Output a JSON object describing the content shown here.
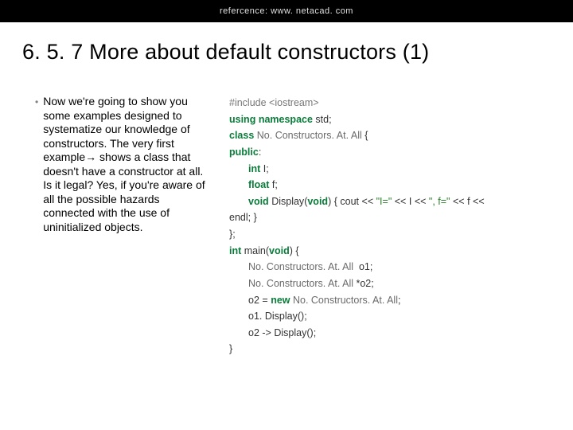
{
  "header": {
    "reference": "refercence: www. netacad. com"
  },
  "title": "6. 5. 7 More about default constructors (1)",
  "paragraph": "Now we're going to show you some examples designed to systematize our knowledge of constructors. The very first example→ shows a class that doesn't have a constructor at all. Is it legal? Yes, if you're aware of all the possible hazards connected with the use of uninitialized objects.",
  "code": {
    "colors": {
      "keyword": "#0a7c3a",
      "preprocessor": "#777777",
      "classname": "#6a6a6a",
      "text": "#333333",
      "string": "#2a7f2a",
      "background": "#ffffff",
      "header_bg": "#000000",
      "header_text": "#e0e0e0",
      "bullet": "#808080"
    },
    "font_size": 12.5,
    "line_height": 1.65,
    "tokens": {
      "include": "#include <iostream>",
      "using": "using",
      "namespace": "namespace",
      "std": "std",
      "class_kw": "class",
      "class_name": "No. Constructors. At. All",
      "public": "public",
      "int_kw": "int",
      "float_kw": "float",
      "void_kw": "void",
      "display": "Display",
      "cout": "cout",
      "str1": "\"I=\"",
      "str2": "\", f=\"",
      "endl": "endl",
      "main": "main",
      "new_kw": "new",
      "o1": "o1",
      "o2": "o2",
      "field_i": "i",
      "field_f": "f",
      "var_I": "I",
      "var_f": "f",
      "lbrace": "{",
      "rbrace": "}",
      "lparen": "(",
      "rparen": ")",
      "semi": ";",
      "colon": ":",
      "comma": ",",
      "lt2": "<<",
      "star": "*",
      "eq": "=",
      "dot": ".",
      "arrow": "->"
    }
  }
}
